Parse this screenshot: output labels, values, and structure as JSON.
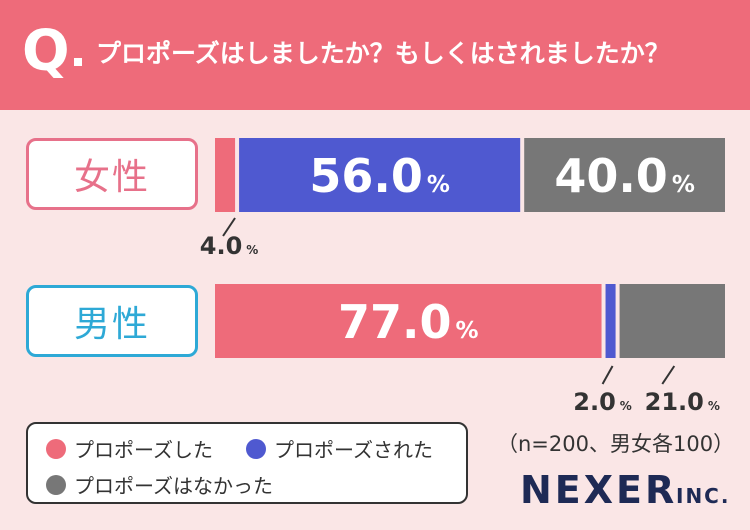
{
  "header": {
    "q_letter": "Q",
    "question": "プロポーズはしましたか？もしくはされましたか？"
  },
  "colors": {
    "proposed": "#ee6b7a",
    "was_proposed": "#4f59d0",
    "no_proposal": "#777777",
    "female_label": "#e7718a",
    "male_label": "#2ea9d6",
    "background": "#fae6e6"
  },
  "chart_data": {
    "type": "bar",
    "orientation": "horizontal",
    "stacked": "100%",
    "categories": [
      "女性",
      "男性"
    ],
    "series": [
      {
        "name": "プロポーズした",
        "values": [
          4.0,
          77.0
        ]
      },
      {
        "name": "プロポーズされた",
        "values": [
          56.0,
          2.0
        ]
      },
      {
        "name": "プロポーズはなかった",
        "values": [
          40.0,
          21.0
        ]
      }
    ],
    "unit": "%",
    "legend_position": "bottom-left"
  },
  "legend": {
    "items": [
      "プロポーズした",
      "プロポーズされた",
      "プロポーズはなかった"
    ]
  },
  "footer": {
    "note": "（n=200、男女各100）",
    "brand": "NEXER",
    "brand_suffix": "INC."
  }
}
